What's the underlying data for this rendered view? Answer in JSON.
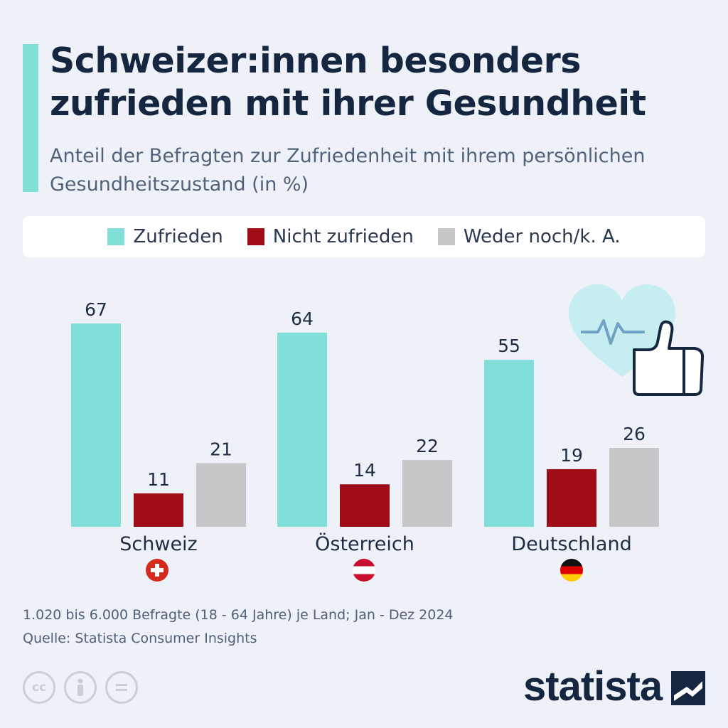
{
  "header": {
    "title": "Schweizer:innen besonders zufrieden mit ihrer Gesundheit",
    "subtitle": "Anteil der Befragten zur Zufriedenheit mit ihrem persönlichen Gesundheitszustand (in %)"
  },
  "legend": [
    {
      "label": "Zufrieden",
      "color": "#80e0d9"
    },
    {
      "label": "Nicht zufrieden",
      "color": "#a10d17"
    },
    {
      "label": "Weder noch/k. A.",
      "color": "#c7c7c9"
    }
  ],
  "chart_data": {
    "type": "bar",
    "title": "Schweizer:innen besonders zufrieden mit ihrer Gesundheit",
    "subtitle": "Anteil der Befragten zur Zufriedenheit mit ihrem persönlichen Gesundheitszustand (in %)",
    "categories": [
      "Schweiz",
      "Österreich",
      "Deutschland"
    ],
    "series": [
      {
        "name": "Zufrieden",
        "values": [
          67,
          64,
          55
        ],
        "color": "#80e0d9"
      },
      {
        "name": "Nicht zufrieden",
        "values": [
          11,
          14,
          19
        ],
        "color": "#a10d17"
      },
      {
        "name": "Weder noch/k. A.",
        "values": [
          21,
          22,
          26
        ],
        "color": "#c7c7c9"
      }
    ],
    "ylim": [
      0,
      67
    ],
    "grid": false,
    "legend_position": "top"
  },
  "footer": {
    "note": "1.020 bis 6.000 Befragte (18 - 64 Jahre) je Land; Jan - Dez 2024",
    "source": "Quelle: Statista Consumer Insights",
    "brand": "statista",
    "license_icons": [
      "cc",
      "by",
      "nd"
    ]
  },
  "decoration": {
    "icons": [
      "heart-pulse-icon",
      "thumbs-up-icon"
    ]
  }
}
